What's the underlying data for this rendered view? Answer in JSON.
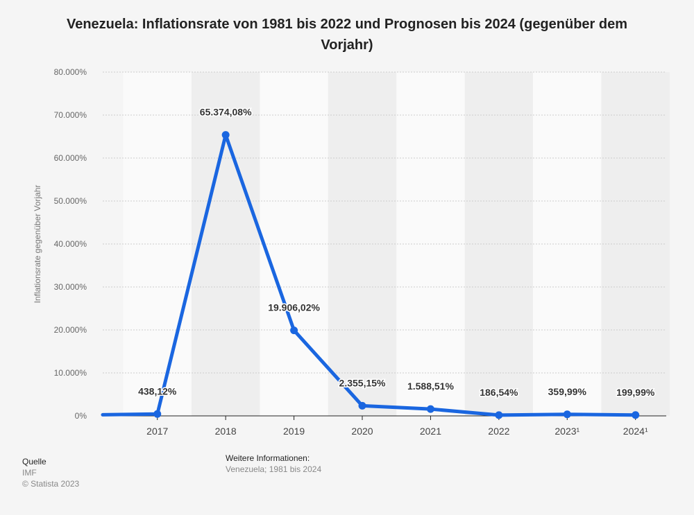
{
  "title": "Venezuela: Inflationsrate von 1981 bis 2022 und Prognosen bis 2024 (gegenüber dem Vorjahr)",
  "ylabel": "Inflationsrate gegenüber Vorjahr",
  "source": {
    "heading": "Quelle",
    "line1": "IMF",
    "line2": "© Statista 2023"
  },
  "info": {
    "heading": "Weitere Informationen:",
    "text": "Venezuela; 1981 bis 2024"
  },
  "colors": {
    "line": "#1a66e0",
    "band": "#eeeeee",
    "grid": "#cccccc"
  },
  "chart_data": {
    "type": "line",
    "title": "Venezuela: Inflationsrate von 1981 bis 2022 und Prognosen bis 2024 (gegenüber dem Vorjahr)",
    "xlabel": "",
    "ylabel": "Inflationsrate gegenüber Vorjahr",
    "ylim": [
      0,
      80000
    ],
    "yticks": [
      0,
      10000,
      20000,
      30000,
      40000,
      50000,
      60000,
      70000,
      80000
    ],
    "ytick_labels": [
      "0%",
      "10.000%",
      "20.000%",
      "30.000%",
      "40.000%",
      "50.000%",
      "60.000%",
      "70.000%",
      "80.000%"
    ],
    "grid": true,
    "legend": "none",
    "categories": [
      "2017",
      "2018",
      "2019",
      "2020",
      "2021",
      "2022",
      "2023¹",
      "2024¹"
    ],
    "values": [
      438.12,
      65374.08,
      19906.02,
      2355.15,
      1588.51,
      186.54,
      359.99,
      199.99
    ],
    "data_labels": [
      "438,12%",
      "65.374,08%",
      "19.906,02%",
      "2.355,15%",
      "1.588,51%",
      "186,54%",
      "359,99%",
      "199,99%"
    ],
    "line_start_value": 254.9
  }
}
